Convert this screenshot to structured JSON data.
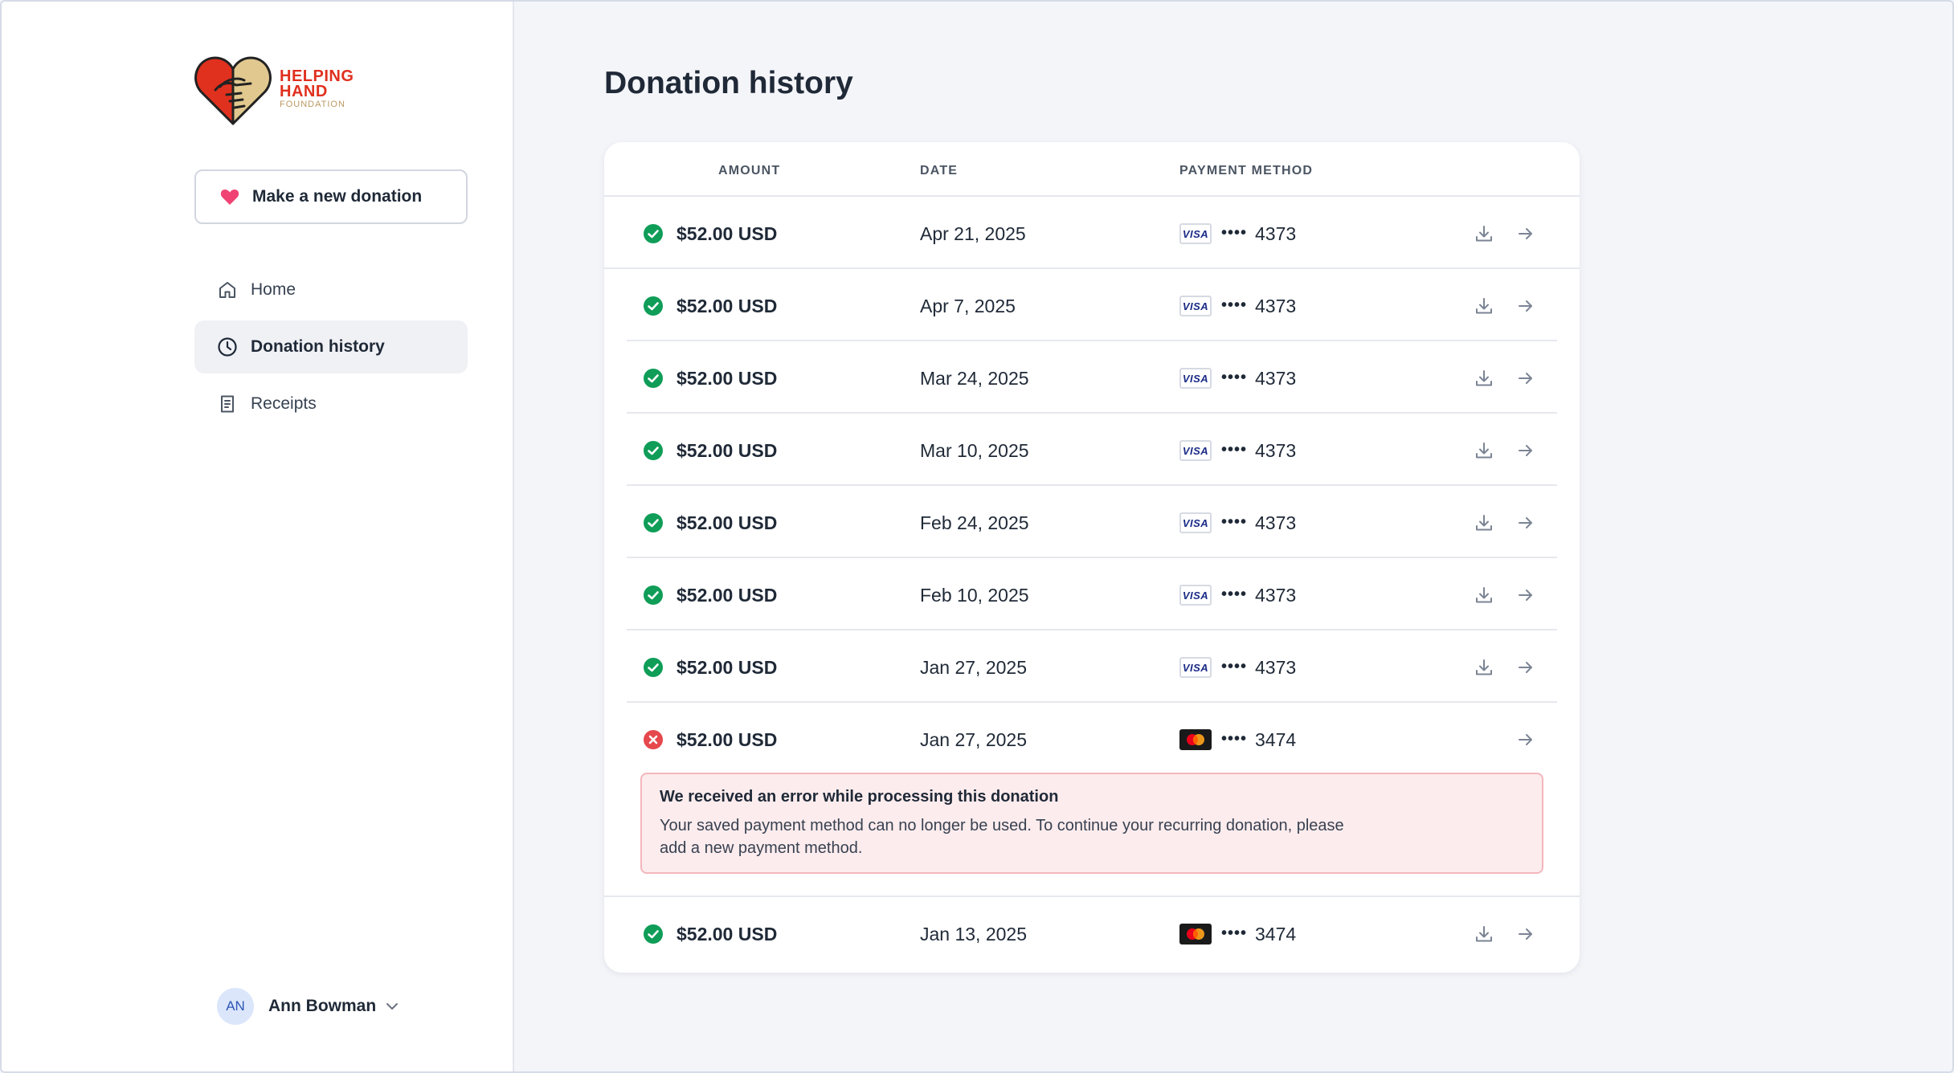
{
  "brand": {
    "line1": "HELPING",
    "line2": "HAND",
    "line3": "FOUNDATION",
    "colors": {
      "red": "#e0301e",
      "tan": "#b99862"
    }
  },
  "sidebar": {
    "donate_button": "Make a new donation",
    "nav": [
      {
        "label": "Home",
        "icon": "home-icon",
        "active": false
      },
      {
        "label": "Donation history",
        "icon": "clock-icon",
        "active": true
      },
      {
        "label": "Receipts",
        "icon": "receipt-icon",
        "active": false
      }
    ],
    "user": {
      "initials": "AN",
      "name": "Ann Bowman"
    }
  },
  "main": {
    "title": "Donation history",
    "columns": {
      "amount": "AMOUNT",
      "date": "DATE",
      "payment": "PAYMENT METHOD"
    },
    "rows": [
      {
        "status": "success",
        "amount": "$52.00 USD",
        "date": "Apr 21, 2025",
        "card": "visa",
        "dots": "••••",
        "last4": "4373"
      },
      {
        "status": "success",
        "amount": "$52.00 USD",
        "date": "Apr 7, 2025",
        "card": "visa",
        "dots": "••••",
        "last4": "4373"
      },
      {
        "status": "success",
        "amount": "$52.00 USD",
        "date": "Mar 24, 2025",
        "card": "visa",
        "dots": "••••",
        "last4": "4373"
      },
      {
        "status": "success",
        "amount": "$52.00 USD",
        "date": "Mar 10, 2025",
        "card": "visa",
        "dots": "••••",
        "last4": "4373"
      },
      {
        "status": "success",
        "amount": "$52.00 USD",
        "date": "Feb 24, 2025",
        "card": "visa",
        "dots": "••••",
        "last4": "4373"
      },
      {
        "status": "success",
        "amount": "$52.00 USD",
        "date": "Feb 10, 2025",
        "card": "visa",
        "dots": "••••",
        "last4": "4373"
      },
      {
        "status": "success",
        "amount": "$52.00 USD",
        "date": "Jan 27, 2025",
        "card": "visa",
        "dots": "••••",
        "last4": "4373"
      },
      {
        "status": "error",
        "amount": "$52.00 USD",
        "date": "Jan 27, 2025",
        "card": "mastercard",
        "dots": "••••",
        "last4": "3474"
      },
      {
        "status": "success",
        "amount": "$52.00 USD",
        "date": "Jan 13, 2025",
        "card": "mastercard",
        "dots": "••••",
        "last4": "3474"
      }
    ],
    "visa_label": "VISA",
    "error": {
      "title": "We received an error while processing this donation",
      "message": "Your saved payment method can no longer be used. To continue your recurring donation, please add a new payment method."
    },
    "colors": {
      "success": "#0f9d58",
      "error": "#e5484d"
    }
  }
}
